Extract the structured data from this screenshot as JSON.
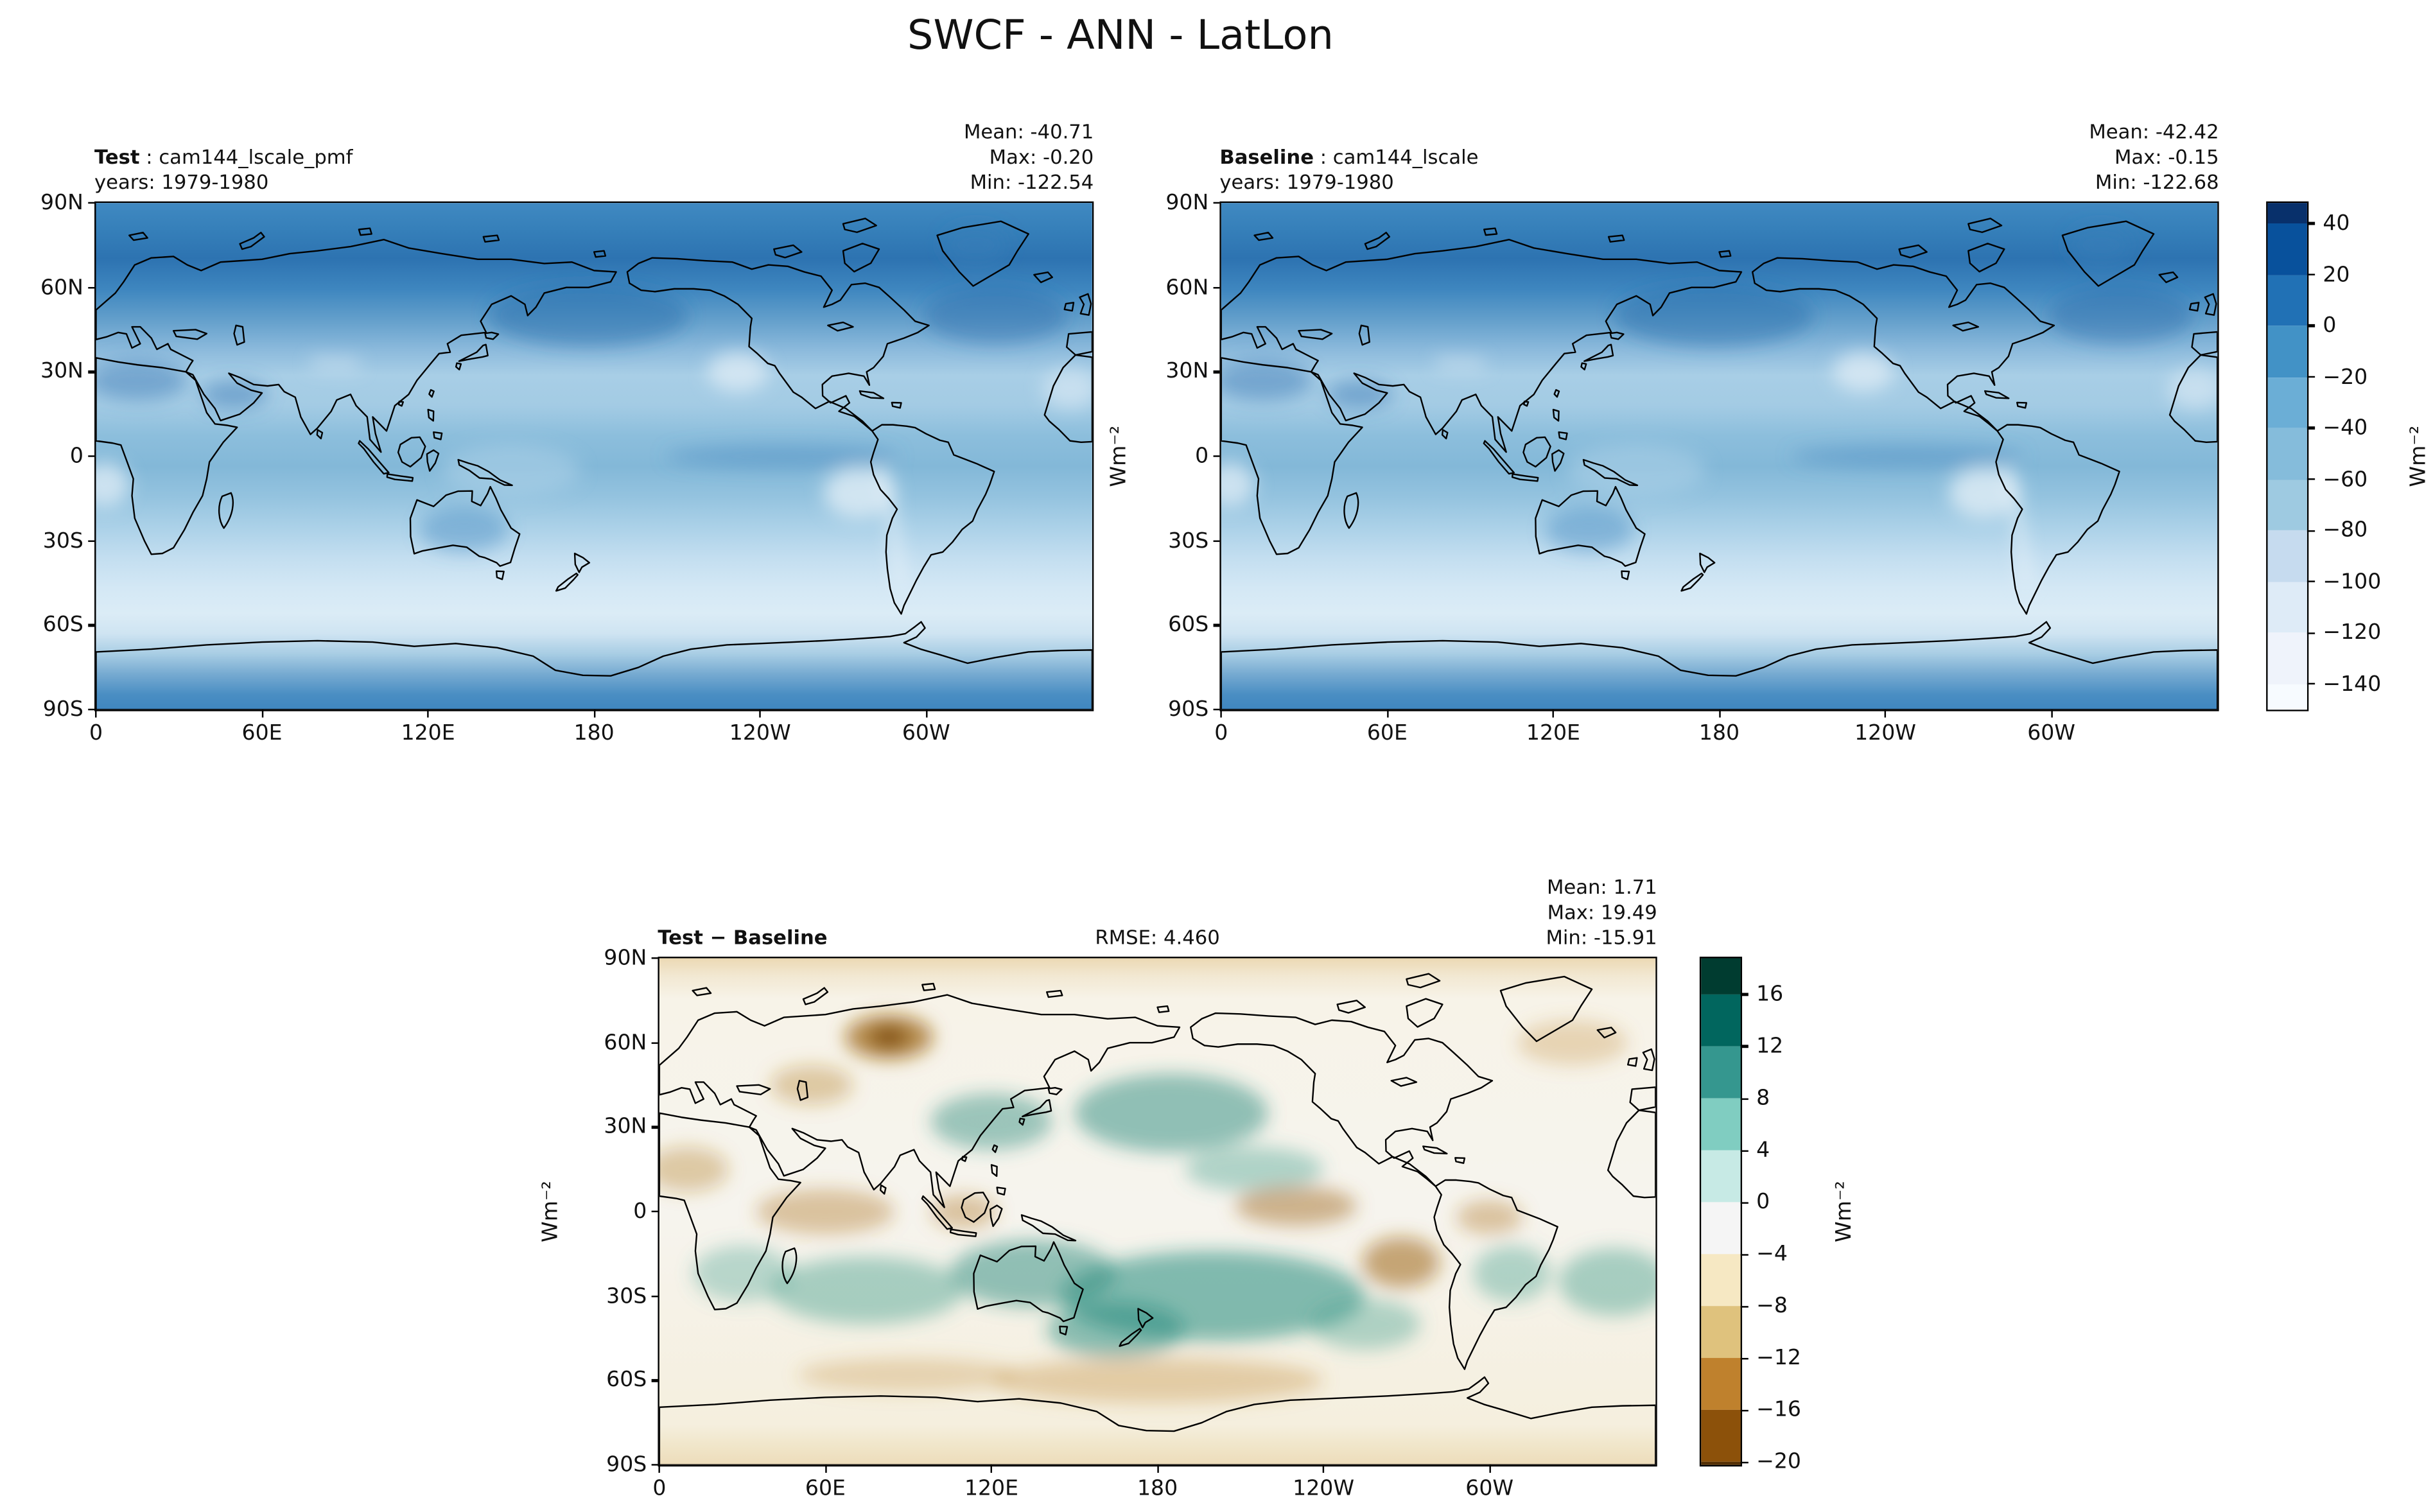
{
  "title": "SWCF - ANN - LatLon",
  "panels": {
    "test": {
      "label_bold": "Test",
      "label_rest": " : cam144_lscale_pmf",
      "years": "years: 1979-1980",
      "stats": {
        "mean": "Mean: -40.71",
        "max": "Max: -0.20",
        "min": "Min: -122.54"
      }
    },
    "baseline": {
      "label_bold": "Baseline",
      "label_rest": " : cam144_lscale",
      "years": "years: 1979-1980",
      "stats": {
        "mean": "Mean: -42.42",
        "max": "Max: -0.15",
        "min": "Min: -122.68"
      }
    },
    "diff": {
      "label_bold": "Test − Baseline",
      "rmse": "RMSE: 4.460",
      "stats": {
        "mean": "Mean: 1.71",
        "max": "Max: 19.49",
        "min": "Min: -15.91"
      }
    }
  },
  "axes": {
    "lat_ticks": [
      "90N",
      "60N",
      "30N",
      "0",
      "30S",
      "60S",
      "90S"
    ],
    "lon_ticks": [
      "0",
      "60E",
      "120E",
      "180",
      "120W",
      "60W"
    ],
    "units": "Wm⁻²"
  },
  "colorbars": {
    "main": {
      "ticks": [
        "40",
        "20",
        "0",
        "−20",
        "−40",
        "−60",
        "−80",
        "−100",
        "−120",
        "−140"
      ],
      "tick_values": [
        40,
        20,
        0,
        -20,
        -40,
        -60,
        -80,
        -100,
        -120,
        -140
      ],
      "vmax": 48,
      "vmin": -150,
      "colors": [
        "#08306b",
        "#08519c",
        "#2171b5",
        "#4292c6",
        "#6baed6",
        "#85bcdb",
        "#9ecae1",
        "#c6dbef",
        "#deebf7",
        "#eff3fb",
        "#f7fbff"
      ]
    },
    "diff": {
      "ticks": [
        "16",
        "12",
        "8",
        "4",
        "0",
        "−4",
        "−8",
        "−12",
        "−16",
        "−20"
      ],
      "tick_values": [
        16,
        12,
        8,
        4,
        0,
        -4,
        -8,
        -12,
        -16,
        -20
      ],
      "vmax": 18.8,
      "vmin": -20.2,
      "colors": [
        "#003c30",
        "#01665e",
        "#35978f",
        "#80cdc1",
        "#c7eae5",
        "#f5f5f5",
        "#f6e8c3",
        "#dfc27d",
        "#bf812d",
        "#8c510a",
        "#543005"
      ]
    }
  },
  "chart_data": [
    {
      "type": "heatmap",
      "title": "Test : cam144_lscale_pmf",
      "subtitle": "years: 1979-1980",
      "variable": "SWCF",
      "season": "ANN",
      "projection": "lat-lon, longitude 0–360E",
      "stats": {
        "mean": -40.71,
        "max": -0.2,
        "min": -122.54
      },
      "units": "Wm⁻²",
      "x_ticks": [
        "0",
        "60E",
        "120E",
        "180",
        "120W",
        "60W"
      ],
      "y_ticks": [
        "90N",
        "60N",
        "30N",
        "0",
        "30S",
        "60S",
        "90S"
      ],
      "colorbar_ticks": [
        40,
        20,
        0,
        -20,
        -40,
        -60,
        -80,
        -100,
        -120,
        -140
      ],
      "colormap": "Blues (dark = near 0 / positive, white = strongly negative)"
    },
    {
      "type": "heatmap",
      "title": "Baseline : cam144_lscale",
      "subtitle": "years: 1979-1980",
      "variable": "SWCF",
      "season": "ANN",
      "projection": "lat-lon, longitude 0–360E",
      "stats": {
        "mean": -42.42,
        "max": -0.15,
        "min": -122.68
      },
      "units": "Wm⁻²",
      "x_ticks": [
        "0",
        "60E",
        "120E",
        "180",
        "120W",
        "60W"
      ],
      "y_ticks": [
        "90N",
        "60N",
        "30N",
        "0",
        "30S",
        "60S",
        "90S"
      ],
      "colorbar_ticks": [
        40,
        20,
        0,
        -20,
        -40,
        -60,
        -80,
        -100,
        -120,
        -140
      ],
      "colormap": "Blues (dark = near 0 / positive, white = strongly negative)"
    },
    {
      "type": "heatmap",
      "title": "Test − Baseline",
      "rmse": 4.46,
      "variable": "SWCF difference",
      "season": "ANN",
      "projection": "lat-lon, longitude 0–360E",
      "stats": {
        "mean": 1.71,
        "max": 19.49,
        "min": -15.91
      },
      "units": "Wm⁻²",
      "x_ticks": [
        "0",
        "60E",
        "120E",
        "180",
        "120W",
        "60W"
      ],
      "y_ticks": [
        "90N",
        "60N",
        "30N",
        "0",
        "30S",
        "60S",
        "90S"
      ],
      "colorbar_ticks": [
        16,
        12,
        8,
        4,
        0,
        -4,
        -8,
        -12,
        -16,
        -20
      ],
      "colormap": "BrBG (teal = positive, brown = negative)"
    }
  ]
}
